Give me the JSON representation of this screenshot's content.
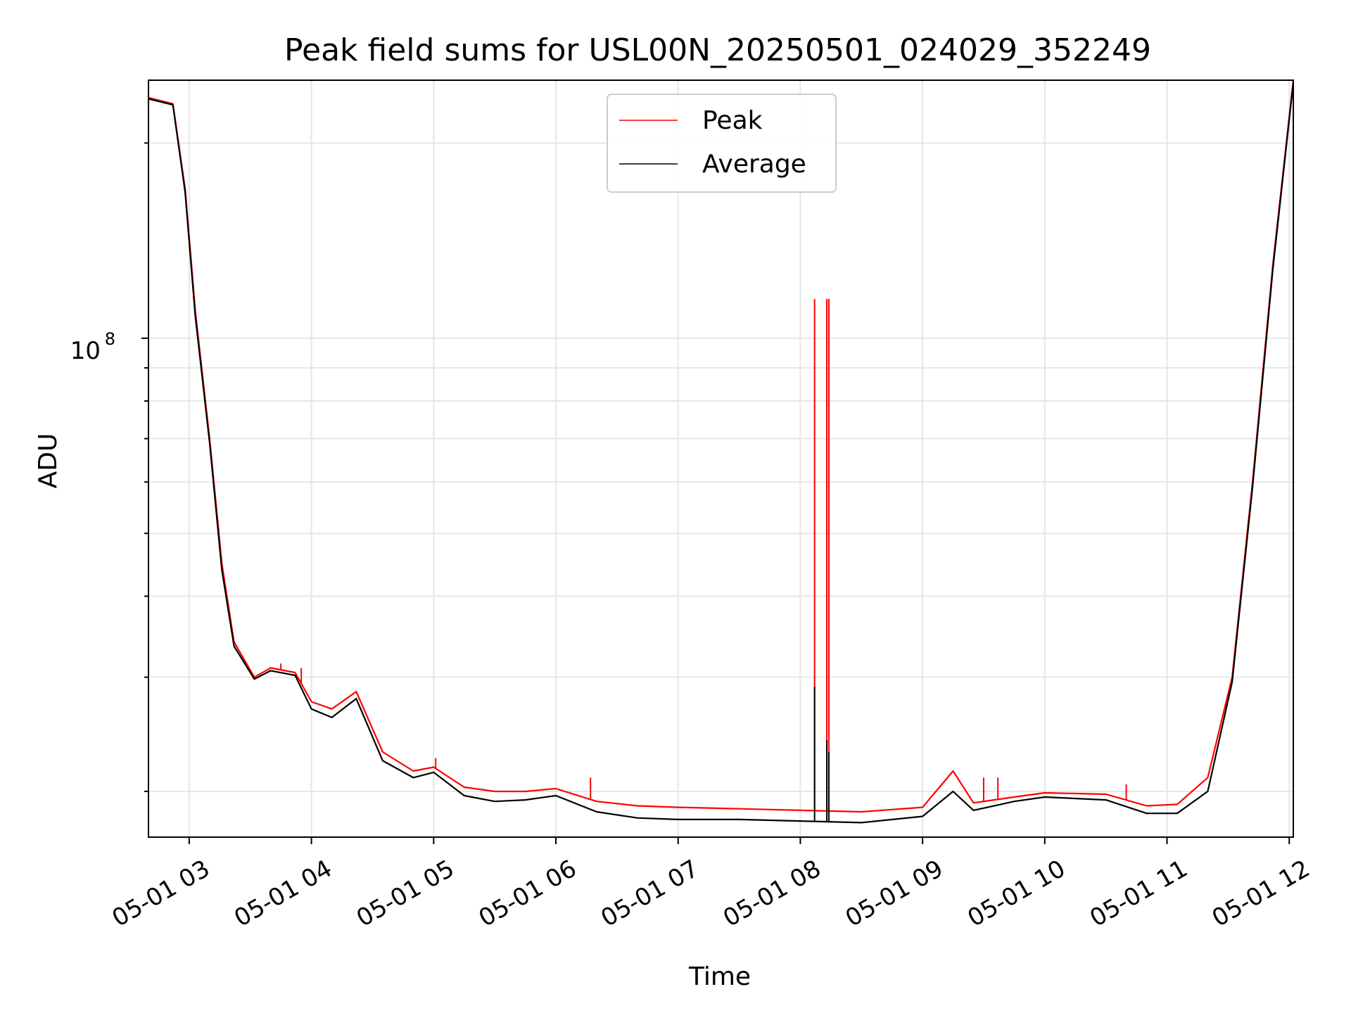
{
  "chart_data": {
    "type": "line",
    "title": "Peak field sums for USL00N_20250501_024029_352249",
    "xlabel": "Time",
    "ylabel": "ADU",
    "yscale": "log",
    "xlim": [
      "2025-05-01 02:40",
      "2025-05-01 12:02"
    ],
    "ylim": [
      17000000,
      250000000
    ],
    "x_ticks": [
      "05-01 03",
      "05-01 04",
      "05-01 05",
      "05-01 06",
      "05-01 07",
      "05-01 08",
      "05-01 09",
      "05-01 10",
      "05-01 11",
      "05-01 12"
    ],
    "y_tick_label": {
      "base": "10",
      "exponent": "8"
    },
    "grid": true,
    "legend_position": "top-center",
    "series": [
      {
        "name": "Peak",
        "color": "#ff0000",
        "points": [
          [
            "2025-05-01 02:40",
            235000000
          ],
          [
            "2025-05-01 02:52",
            230000000
          ],
          [
            "2025-05-01 02:58",
            170000000
          ],
          [
            "2025-05-01 03:03",
            110000000
          ],
          [
            "2025-05-01 03:10",
            70000000
          ],
          [
            "2025-05-01 03:16",
            45000000
          ],
          [
            "2025-05-01 03:22",
            34000000
          ],
          [
            "2025-05-01 03:32",
            30000000
          ],
          [
            "2025-05-01 03:40",
            31000000
          ],
          [
            "2025-05-01 03:52",
            30500000
          ],
          [
            "2025-05-01 04:00",
            27500000
          ],
          [
            "2025-05-01 04:10",
            26800000
          ],
          [
            "2025-05-01 04:22",
            28500000
          ],
          [
            "2025-05-01 04:35",
            23000000
          ],
          [
            "2025-05-01 04:50",
            21500000
          ],
          [
            "2025-05-01 05:00",
            21800000
          ],
          [
            "2025-05-01 05:15",
            20300000
          ],
          [
            "2025-05-01 05:30",
            20000000
          ],
          [
            "2025-05-01 05:45",
            20000000
          ],
          [
            "2025-05-01 06:00",
            20200000
          ],
          [
            "2025-05-01 06:20",
            19300000
          ],
          [
            "2025-05-01 06:40",
            19000000
          ],
          [
            "2025-05-01 07:00",
            18900000
          ],
          [
            "2025-05-01 07:30",
            18800000
          ],
          [
            "2025-05-01 08:00",
            18700000
          ],
          [
            "2025-05-01 08:30",
            18600000
          ],
          [
            "2025-05-01 09:00",
            18900000
          ],
          [
            "2025-05-01 09:15",
            21500000
          ],
          [
            "2025-05-01 09:25",
            19200000
          ],
          [
            "2025-05-01 09:45",
            19600000
          ],
          [
            "2025-05-01 10:00",
            19900000
          ],
          [
            "2025-05-01 10:30",
            19800000
          ],
          [
            "2025-05-01 10:50",
            19000000
          ],
          [
            "2025-05-01 11:05",
            19100000
          ],
          [
            "2025-05-01 11:20",
            21000000
          ],
          [
            "2025-05-01 11:32",
            30000000
          ],
          [
            "2025-05-01 11:42",
            60000000
          ],
          [
            "2025-05-01 11:52",
            130000000
          ],
          [
            "2025-05-01 12:02",
            250000000
          ]
        ],
        "spikes": [
          [
            "2025-05-01 08:07",
            115000000
          ],
          [
            "2025-05-01 08:13",
            115000000
          ],
          [
            "2025-05-01 08:14",
            115000000
          ],
          [
            "2025-05-01 03:45",
            31500000
          ],
          [
            "2025-05-01 03:55",
            31000000
          ],
          [
            "2025-05-01 05:01",
            22500000
          ],
          [
            "2025-05-01 06:17",
            21000000
          ],
          [
            "2025-05-01 09:30",
            21000000
          ],
          [
            "2025-05-01 09:37",
            21000000
          ],
          [
            "2025-05-01 10:40",
            20500000
          ]
        ]
      },
      {
        "name": "Average",
        "color": "#000000",
        "points": [
          [
            "2025-05-01 02:40",
            234000000
          ],
          [
            "2025-05-01 02:52",
            229000000
          ],
          [
            "2025-05-01 02:58",
            168000000
          ],
          [
            "2025-05-01 03:03",
            108000000
          ],
          [
            "2025-05-01 03:10",
            69000000
          ],
          [
            "2025-05-01 03:16",
            44000000
          ],
          [
            "2025-05-01 03:22",
            33500000
          ],
          [
            "2025-05-01 03:32",
            29800000
          ],
          [
            "2025-05-01 03:40",
            30700000
          ],
          [
            "2025-05-01 03:52",
            30200000
          ],
          [
            "2025-05-01 04:00",
            26800000
          ],
          [
            "2025-05-01 04:10",
            26000000
          ],
          [
            "2025-05-01 04:22",
            27800000
          ],
          [
            "2025-05-01 04:35",
            22300000
          ],
          [
            "2025-05-01 04:50",
            21000000
          ],
          [
            "2025-05-01 05:00",
            21400000
          ],
          [
            "2025-05-01 05:15",
            19700000
          ],
          [
            "2025-05-01 05:30",
            19300000
          ],
          [
            "2025-05-01 05:45",
            19400000
          ],
          [
            "2025-05-01 06:00",
            19700000
          ],
          [
            "2025-05-01 06:20",
            18600000
          ],
          [
            "2025-05-01 06:40",
            18200000
          ],
          [
            "2025-05-01 07:00",
            18100000
          ],
          [
            "2025-05-01 07:30",
            18100000
          ],
          [
            "2025-05-01 08:00",
            18000000
          ],
          [
            "2025-05-01 08:30",
            17900000
          ],
          [
            "2025-05-01 09:00",
            18300000
          ],
          [
            "2025-05-01 09:15",
            20000000
          ],
          [
            "2025-05-01 09:25",
            18700000
          ],
          [
            "2025-05-01 09:45",
            19300000
          ],
          [
            "2025-05-01 10:00",
            19600000
          ],
          [
            "2025-05-01 10:30",
            19400000
          ],
          [
            "2025-05-01 10:50",
            18500000
          ],
          [
            "2025-05-01 11:05",
            18500000
          ],
          [
            "2025-05-01 11:20",
            20000000
          ],
          [
            "2025-05-01 11:32",
            29500000
          ],
          [
            "2025-05-01 11:42",
            59000000
          ],
          [
            "2025-05-01 11:52",
            128000000
          ],
          [
            "2025-05-01 12:02",
            248000000
          ]
        ],
        "spikes": [
          [
            "2025-05-01 08:07",
            29000000
          ],
          [
            "2025-05-01 08:13",
            24000000
          ],
          [
            "2025-05-01 08:14",
            23000000
          ]
        ]
      }
    ]
  }
}
